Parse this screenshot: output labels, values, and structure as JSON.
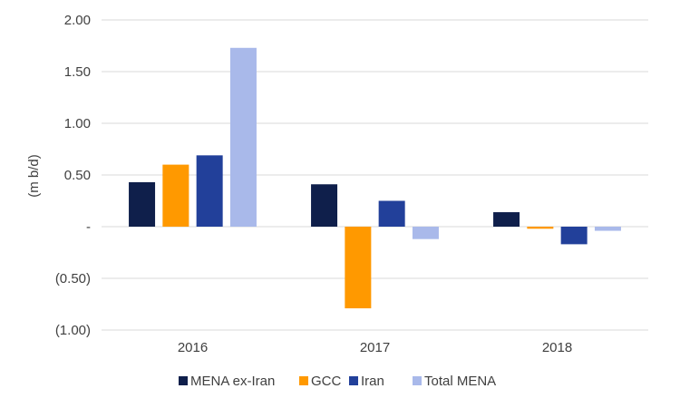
{
  "chart_data": {
    "type": "bar",
    "title": "",
    "xlabel": "",
    "ylabel": "(m b/d)",
    "categories": [
      "2016",
      "2017",
      "2018"
    ],
    "series": [
      {
        "name": "MENA ex-Iran",
        "color": "#0f1f4b",
        "values": [
          0.43,
          0.41,
          0.14
        ]
      },
      {
        "name": "GCC",
        "color": "#ff9900",
        "values": [
          0.6,
          -0.79,
          -0.02
        ]
      },
      {
        "name": "Iran",
        "color": "#22409a",
        "values": [
          0.69,
          0.25,
          -0.17
        ]
      },
      {
        "name": "Total MENA",
        "color": "#a9b9ea",
        "values": [
          1.73,
          -0.12,
          -0.04
        ]
      }
    ],
    "ylim": [
      -1.0,
      2.0
    ],
    "yticks": [
      2.0,
      1.5,
      1.0,
      0.5,
      0,
      -0.5,
      -1.0
    ],
    "ytick_labels": [
      "2.00",
      "1.50",
      "1.00",
      "0.50",
      "-",
      "(0.50)",
      "(1.00)"
    ],
    "grid": true,
    "legend_position": "bottom"
  }
}
